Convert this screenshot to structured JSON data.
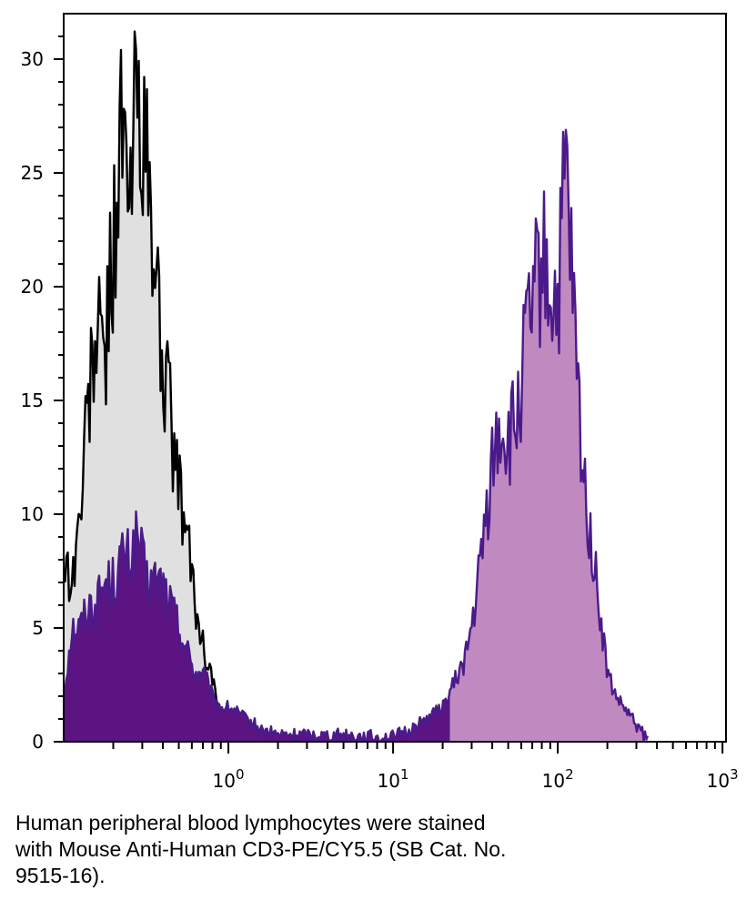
{
  "chart_data": {
    "type": "area",
    "title": "",
    "xlabel": "",
    "ylabel": "",
    "x_scale": "log",
    "xlim": [
      0.1,
      1050
    ],
    "ylim": [
      0,
      32
    ],
    "grid": false,
    "y_ticks": [
      0,
      5,
      10,
      15,
      20,
      25,
      30
    ],
    "y_tick_labels": [
      "0",
      "5",
      "10",
      "15",
      "20",
      "25",
      "30"
    ],
    "x_ticks": [
      1,
      10,
      100,
      1000
    ],
    "x_tick_labels": [
      {
        "base": "10",
        "exp": "0"
      },
      {
        "base": "10",
        "exp": "1"
      },
      {
        "base": "10",
        "exp": "2"
      },
      {
        "base": "10",
        "exp": "3"
      }
    ],
    "series": [
      {
        "role": "isotype-control",
        "line_color": "#000000",
        "fill_color": "#e0e0e0",
        "x": [
          0.1,
          0.112,
          0.126,
          0.141,
          0.158,
          0.178,
          0.2,
          0.224,
          0.251,
          0.282,
          0.316,
          0.355,
          0.398,
          0.447,
          0.501,
          0.562,
          0.631,
          0.708,
          0.794,
          0.891,
          1.0,
          1.12
        ],
        "y": [
          8,
          7,
          10,
          15,
          18,
          17,
          22,
          27,
          23,
          30,
          25,
          21,
          17,
          14,
          11,
          9,
          6,
          4,
          3,
          1,
          0.5,
          0
        ]
      },
      {
        "role": "CD3-PE/CY5.5",
        "line_color": "#4b1a8a",
        "fill_color_low": "#5c1483",
        "fill_color_high": "#c08ac0",
        "x": [
          0.1,
          0.112,
          0.126,
          0.141,
          0.158,
          0.178,
          0.2,
          0.224,
          0.251,
          0.282,
          0.316,
          0.355,
          0.398,
          0.447,
          0.501,
          0.562,
          0.631,
          0.708,
          0.794,
          0.891,
          1.0,
          1.12,
          1.26,
          1.41,
          1.58,
          2.0,
          3.16,
          5.01,
          7.94,
          10,
          12.6,
          15.8,
          20,
          25.1,
          28.2,
          31.6,
          35.5,
          39.8,
          44.7,
          50.1,
          56.2,
          63.1,
          70.8,
          79.4,
          89.1,
          100,
          112,
          126,
          141,
          158,
          178,
          200,
          224,
          251,
          282,
          316,
          355
        ],
        "y": [
          2,
          5,
          5,
          6,
          6,
          7,
          7,
          8,
          8,
          9,
          7,
          7,
          7,
          6,
          5,
          4,
          3,
          3,
          2,
          1.5,
          1.5,
          1.3,
          1.0,
          0.8,
          0.5,
          0.3,
          0.3,
          0.3,
          0.2,
          0.2,
          0.5,
          1,
          1.5,
          3,
          4,
          6,
          9,
          12,
          14,
          13,
          14,
          17,
          19,
          21,
          20,
          19,
          25,
          18,
          12,
          9,
          6,
          3,
          2,
          1.5,
          1,
          0.5,
          0
        ]
      }
    ]
  },
  "caption": {
    "lines": [
      "Human peripheral blood lymphocytes were stained",
      "with Mouse Anti-Human CD3-PE/CY5.5 (SB Cat. No.",
      "9515-16)."
    ]
  }
}
